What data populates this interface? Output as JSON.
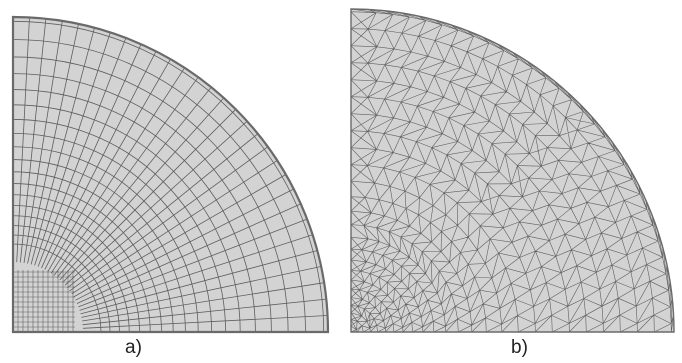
{
  "panels": [
    {
      "label": "a)",
      "mesh": "quadrilateral"
    },
    {
      "label": "b)",
      "mesh": "triangular"
    }
  ],
  "colors": {
    "fill": "#d3d3d3",
    "line": "#5e5e5e",
    "outline": "#6a6a6a",
    "background": "#ffffff",
    "label": "#222222"
  }
}
